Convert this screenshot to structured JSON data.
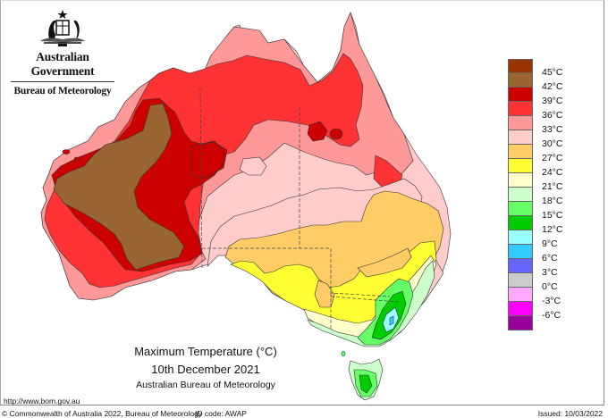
{
  "header": {
    "government": "Australian Government",
    "agency": "Bureau of Meteorology",
    "crest_icon": "coat-of-arms-icon"
  },
  "map": {
    "title": "Maximum Temperature (°C)",
    "date": "10th December 2021",
    "source": "Australian Bureau of Meteorology",
    "region": "Australia"
  },
  "legend": {
    "unit": "°C",
    "steps": [
      {
        "color": "#993300",
        "label": "45°C"
      },
      {
        "color": "#996633",
        "label": "42°C"
      },
      {
        "color": "#CC0000",
        "label": "39°C"
      },
      {
        "color": "#FF3333",
        "label": "36°C"
      },
      {
        "color": "#FF9999",
        "label": "33°C"
      },
      {
        "color": "#FFCCCC",
        "label": "30°C"
      },
      {
        "color": "#FFCC66",
        "label": "27°C"
      },
      {
        "color": "#FFFF33",
        "label": "24°C"
      },
      {
        "color": "#FFFFCC",
        "label": "21°C"
      },
      {
        "color": "#CCFFCC",
        "label": "18°C"
      },
      {
        "color": "#66FF66",
        "label": "15°C"
      },
      {
        "color": "#00CC00",
        "label": "12°C"
      },
      {
        "color": "#99FFFF",
        "label": "9°C"
      },
      {
        "color": "#33CCFF",
        "label": "6°C"
      },
      {
        "color": "#6666FF",
        "label": "3°C"
      },
      {
        "color": "#CCCCCC",
        "label": "0°C"
      },
      {
        "color": "#FFAAFF",
        "label": "-3°C"
      },
      {
        "color": "#FF00FF",
        "label": "-6°C"
      },
      {
        "color": "#990099",
        "label": ""
      }
    ]
  },
  "footer": {
    "url": "http://www.bom.gov.au",
    "copyright": "© Commonwealth of Australia 2022, Bureau of Meteorology",
    "id_code": "ID code: AWAP",
    "issued": "Issued: 10/03/2022"
  }
}
